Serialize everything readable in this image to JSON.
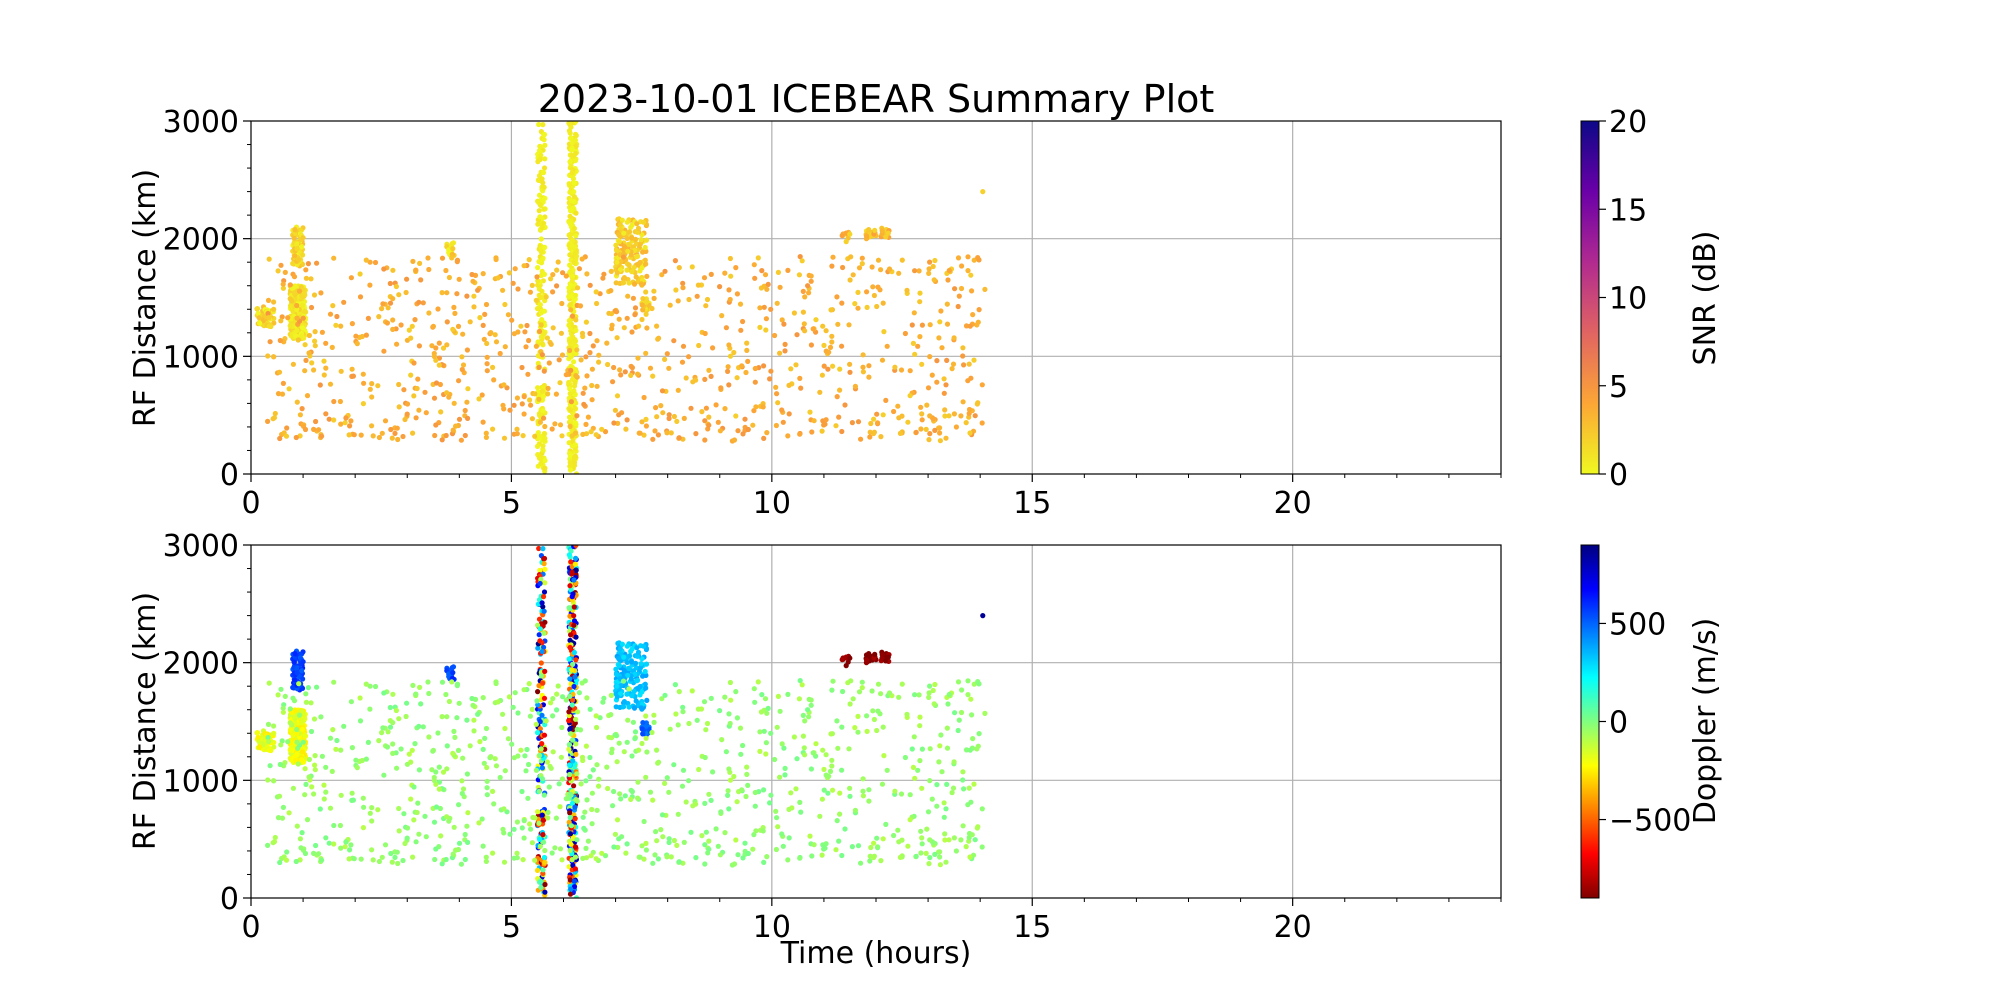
{
  "figure": {
    "title": "2023-10-01 ICEBEAR Summary Plot",
    "xlabel": "Time (hours)"
  },
  "chart_data": [
    {
      "type": "scatter",
      "name": "snr-panel",
      "ylabel": "RF Distance (km)",
      "xlim": [
        0,
        24
      ],
      "ylim": [
        0,
        3000
      ],
      "xticks": [
        0,
        5,
        10,
        15,
        20
      ],
      "yticks": [
        0,
        1000,
        2000,
        3000
      ],
      "grid": true,
      "colorbar": {
        "label": "SNR (dB)",
        "range": [
          0,
          20
        ],
        "ticks": [
          0,
          5,
          10,
          15,
          20
        ],
        "colormap": "plasma_r",
        "stops": [
          "#f0f921",
          "#fca636",
          "#e16462",
          "#b12a90",
          "#6a00a8",
          "#0d0887"
        ]
      },
      "point_color": "#f8d126",
      "clusters": [
        {
          "x": [
            0.1,
            0.45
          ],
          "y": [
            1250,
            1420
          ],
          "n": 60,
          "c": 1.5
        },
        {
          "x": [
            0.75,
            1.05
          ],
          "y": [
            1150,
            1600
          ],
          "n": 240,
          "c": 1
        },
        {
          "x": [
            0.8,
            1.0
          ],
          "y": [
            1760,
            2100
          ],
          "n": 80,
          "c": 1.5
        },
        {
          "x": [
            3.75,
            3.9
          ],
          "y": [
            1850,
            1980
          ],
          "n": 15,
          "c": 1.5
        },
        {
          "x": [
            5.5,
            5.65
          ],
          "y": [
            0,
            3000
          ],
          "n": 200,
          "c": 0.5
        },
        {
          "x": [
            6.1,
            6.25
          ],
          "y": [
            0,
            3000
          ],
          "n": 360,
          "c": 0.5
        },
        {
          "x": [
            7.0,
            7.6
          ],
          "y": [
            1600,
            2180
          ],
          "n": 160,
          "c": 2
        },
        {
          "x": [
            7.5,
            7.65
          ],
          "y": [
            1380,
            1500
          ],
          "n": 20,
          "c": 2
        },
        {
          "x": [
            11.3,
            11.5
          ],
          "y": [
            1950,
            2060
          ],
          "n": 10,
          "c": 3
        },
        {
          "x": [
            11.8,
            12.25
          ],
          "y": [
            2000,
            2090
          ],
          "n": 30,
          "c": 3
        },
        {
          "x": [
            0.3,
            14.1
          ],
          "y": [
            280,
            1850
          ],
          "n": 950,
          "c": 3.5,
          "spread": true
        }
      ],
      "singles": [
        {
          "x": 14.05,
          "y": 2400,
          "c": 2
        }
      ]
    },
    {
      "type": "scatter",
      "name": "doppler-panel",
      "ylabel": "RF Distance (km)",
      "xlabel": "Time (hours)",
      "xlim": [
        0,
        24
      ],
      "ylim": [
        0,
        3000
      ],
      "xticks": [
        0,
        5,
        10,
        15,
        20
      ],
      "yticks": [
        0,
        1000,
        2000,
        3000
      ],
      "grid": true,
      "colorbar": {
        "label": "Doppler (m/s)",
        "range": [
          -900,
          900
        ],
        "ticks": [
          -500,
          0,
          500
        ],
        "tick_labels": [
          "−500",
          "0",
          "500"
        ],
        "colormap": "jet_r",
        "stops": [
          "#800000",
          "#ff0000",
          "#ff8000",
          "#ffff00",
          "#80ff80",
          "#00ffff",
          "#0080ff",
          "#0000ff",
          "#000080"
        ]
      },
      "clusters": [
        {
          "x": [
            0.1,
            0.45
          ],
          "y": [
            1250,
            1420
          ],
          "n": 60,
          "v": -200
        },
        {
          "x": [
            0.75,
            1.05
          ],
          "y": [
            1150,
            1600
          ],
          "n": 240,
          "v": -200
        },
        {
          "x": [
            0.8,
            1.0
          ],
          "y": [
            1760,
            2100
          ],
          "n": 80,
          "v": 560
        },
        {
          "x": [
            3.75,
            3.9
          ],
          "y": [
            1850,
            1980
          ],
          "n": 15,
          "v": 560
        },
        {
          "x": [
            5.5,
            5.65
          ],
          "y": [
            0,
            3000
          ],
          "n": 200,
          "v": "mixed"
        },
        {
          "x": [
            6.1,
            6.25
          ],
          "y": [
            0,
            3000
          ],
          "n": 360,
          "v": "mixed"
        },
        {
          "x": [
            7.0,
            7.6
          ],
          "y": [
            1600,
            2180
          ],
          "n": 160,
          "v": 330
        },
        {
          "x": [
            7.5,
            7.65
          ],
          "y": [
            1380,
            1500
          ],
          "n": 20,
          "v": 500
        },
        {
          "x": [
            11.3,
            11.5
          ],
          "y": [
            1950,
            2060
          ],
          "n": 10,
          "v": -880
        },
        {
          "x": [
            11.8,
            12.25
          ],
          "y": [
            2000,
            2090
          ],
          "n": 30,
          "v": -880
        },
        {
          "x": [
            0.3,
            14.1
          ],
          "y": [
            280,
            1850
          ],
          "n": 950,
          "v": -40,
          "spread": true
        }
      ],
      "singles": [
        {
          "x": 14.05,
          "y": 2400,
          "v": 860
        }
      ]
    }
  ]
}
